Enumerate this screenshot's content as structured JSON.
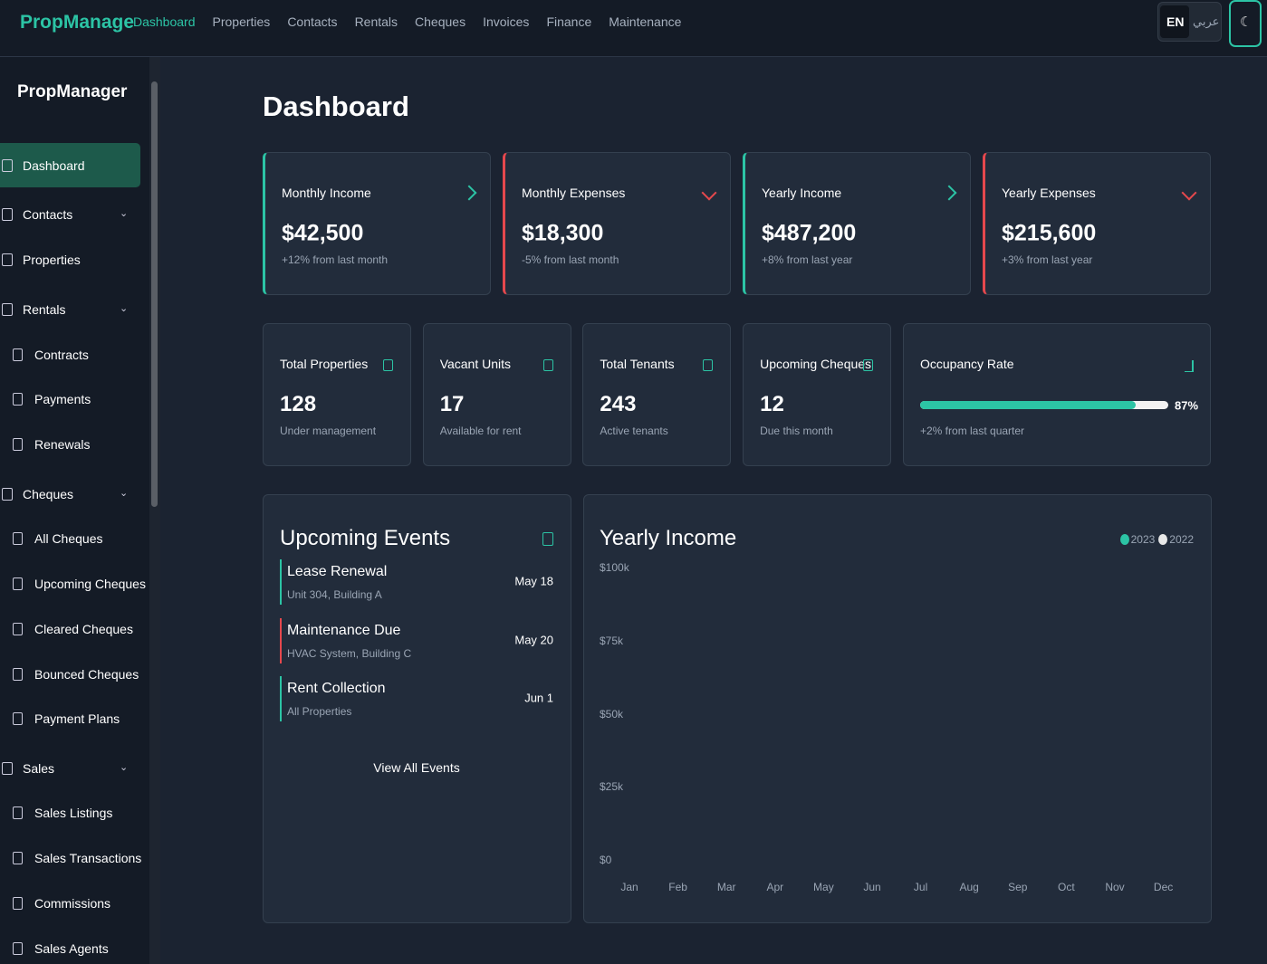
{
  "brand": "PropManage",
  "nav": [
    "Dashboard",
    "Properties",
    "Contacts",
    "Rentals",
    "Cheques",
    "Invoices",
    "Finance",
    "Maintenance"
  ],
  "lang": {
    "en": "EN",
    "ar": "عربي"
  },
  "sidebar": {
    "brand": "PropManager",
    "sections": [
      {
        "label": "Dashboard"
      },
      {
        "label": "Contacts",
        "children": []
      },
      {
        "label": "Properties"
      },
      {
        "label": "Rentals",
        "children": [
          "Contracts",
          "Payments",
          "Renewals"
        ]
      },
      {
        "label": "Cheques",
        "children": [
          "All Cheques",
          "Upcoming Cheques",
          "Cleared Cheques",
          "Bounced Cheques",
          "Payment Plans"
        ]
      },
      {
        "label": "Sales",
        "children": [
          "Sales Listings",
          "Sales Transactions",
          "Commissions",
          "Sales Agents"
        ]
      }
    ]
  },
  "page_title": "Dashboard",
  "finance_cards": [
    {
      "title": "Monthly Income",
      "value": "$42,500",
      "note": "+12% from last month",
      "color": "#2cc4a5"
    },
    {
      "title": "Monthly Expenses",
      "value": "$18,300",
      "note": "-5% from last month",
      "color": "#e5484d"
    },
    {
      "title": "Yearly Income",
      "value": "$487,200",
      "note": "+8% from last year",
      "color": "#2cc4a5"
    },
    {
      "title": "Yearly Expenses",
      "value": "$215,600",
      "note": "+3% from last year",
      "color": "#e5484d"
    }
  ],
  "stat_cards": [
    {
      "title": "Total Properties",
      "value": "128",
      "note": "Under management"
    },
    {
      "title": "Vacant Units",
      "value": "17",
      "note": "Available for rent"
    },
    {
      "title": "Total Tenants",
      "value": "243",
      "note": "Active tenants"
    },
    {
      "title": "Upcoming Cheques",
      "value": "12",
      "note": "Due this month"
    }
  ],
  "occupancy": {
    "title": "Occupancy Rate",
    "value": 87,
    "value_label": "87%",
    "note": "+2% from last quarter"
  },
  "events": {
    "title": "Upcoming Events",
    "items": [
      {
        "title": "Lease Renewal",
        "subtitle": "Unit 304, Building A",
        "date": "May 18",
        "color": "#2cc4a5"
      },
      {
        "title": "Maintenance Due",
        "subtitle": "HVAC System, Building C",
        "date": "May 20",
        "color": "#e5484d"
      },
      {
        "title": "Rent Collection",
        "subtitle": "All Properties",
        "date": "Jun 1",
        "color": "#2cc4a5"
      }
    ],
    "link": "View All Events"
  },
  "chart_data": {
    "type": "line",
    "title": "Yearly Income",
    "legend": [
      {
        "name": "2023",
        "color": "#2cc4a5"
      },
      {
        "name": "2022",
        "color": "#e8e8e8"
      }
    ],
    "categories": [
      "Jan",
      "Feb",
      "Mar",
      "Apr",
      "May",
      "Jun",
      "Jul",
      "Aug",
      "Sep",
      "Oct",
      "Nov",
      "Dec"
    ],
    "ylim": [
      0,
      100000
    ],
    "yticks": [
      {
        "value": 0,
        "label": "$0"
      },
      {
        "value": 25000,
        "label": "$25k"
      },
      {
        "value": 50000,
        "label": "$50k"
      },
      {
        "value": 75000,
        "label": "$75k"
      },
      {
        "value": 100000,
        "label": "$100k"
      }
    ]
  }
}
